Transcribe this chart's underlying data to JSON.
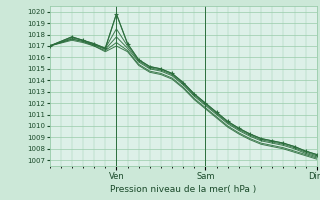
{
  "title": "Pression niveau de la mer( hPa )",
  "background_color": "#cce8d8",
  "plot_bg_color": "#ddf0e8",
  "grid_color": "#99ccaa",
  "line_color": "#2d6e3e",
  "marker_color": "#2d6e3e",
  "ylim": [
    1006.5,
    1020.5
  ],
  "yticks": [
    1007,
    1008,
    1009,
    1010,
    1011,
    1012,
    1013,
    1014,
    1015,
    1016,
    1017,
    1018,
    1019,
    1020
  ],
  "xlabel_color": "#1a4a2a",
  "lines": [
    {
      "x": [
        0,
        12,
        18,
        24,
        30,
        36,
        42,
        48,
        54,
        60,
        66,
        72,
        78,
        84,
        90,
        96,
        102,
        108,
        114,
        120,
        126,
        132,
        138,
        144
      ],
      "y": [
        1017.0,
        1017.8,
        1017.5,
        1017.2,
        1016.8,
        1019.8,
        1017.2,
        1015.8,
        1015.2,
        1015.0,
        1014.6,
        1013.8,
        1012.8,
        1012.0,
        1011.2,
        1010.4,
        1009.8,
        1009.3,
        1008.9,
        1008.7,
        1008.5,
        1008.2,
        1007.8,
        1007.5
      ]
    },
    {
      "x": [
        0,
        12,
        18,
        24,
        30,
        36,
        42,
        48,
        54,
        60,
        66,
        72,
        78,
        84,
        90,
        96,
        102,
        108,
        114,
        120,
        126,
        132,
        138,
        144
      ],
      "y": [
        1017.0,
        1017.7,
        1017.5,
        1017.1,
        1016.8,
        1018.5,
        1017.0,
        1015.7,
        1015.1,
        1014.9,
        1014.5,
        1013.7,
        1012.7,
        1011.9,
        1011.1,
        1010.3,
        1009.7,
        1009.2,
        1008.8,
        1008.6,
        1008.4,
        1008.1,
        1007.7,
        1007.4
      ]
    },
    {
      "x": [
        0,
        12,
        18,
        24,
        30,
        36,
        42,
        48,
        54,
        60,
        66,
        72,
        78,
        84,
        90,
        96,
        102,
        108,
        114,
        120,
        126,
        132,
        138,
        144
      ],
      "y": [
        1017.0,
        1017.6,
        1017.4,
        1017.1,
        1016.7,
        1017.8,
        1016.8,
        1015.6,
        1015.0,
        1014.8,
        1014.4,
        1013.6,
        1012.6,
        1011.8,
        1011.0,
        1010.2,
        1009.6,
        1009.1,
        1008.7,
        1008.5,
        1008.3,
        1008.0,
        1007.6,
        1007.3
      ]
    },
    {
      "x": [
        0,
        12,
        18,
        24,
        30,
        36,
        42,
        48,
        54,
        60,
        66,
        72,
        78,
        84,
        90,
        96,
        102,
        108,
        114,
        120,
        126,
        132,
        138,
        144
      ],
      "y": [
        1017.0,
        1017.6,
        1017.4,
        1017.0,
        1016.6,
        1017.3,
        1016.6,
        1015.4,
        1014.8,
        1014.6,
        1014.2,
        1013.4,
        1012.4,
        1011.6,
        1010.8,
        1010.0,
        1009.4,
        1008.9,
        1008.5,
        1008.3,
        1008.1,
        1007.8,
        1007.5,
        1007.2
      ]
    },
    {
      "x": [
        0,
        12,
        18,
        24,
        30,
        36,
        42,
        48,
        54,
        60,
        66,
        72,
        78,
        84,
        90,
        96,
        102,
        108,
        114,
        120,
        126,
        132,
        138,
        144
      ],
      "y": [
        1017.0,
        1017.5,
        1017.3,
        1017.0,
        1016.5,
        1017.0,
        1016.5,
        1015.3,
        1014.7,
        1014.5,
        1014.1,
        1013.3,
        1012.3,
        1011.5,
        1010.7,
        1009.9,
        1009.3,
        1008.8,
        1008.4,
        1008.2,
        1008.0,
        1007.7,
        1007.4,
        1007.1
      ]
    }
  ],
  "marker_line": {
    "x": [
      0,
      12,
      18,
      24,
      30,
      36,
      42,
      48,
      54,
      60,
      66,
      72,
      78,
      84,
      90,
      96,
      102,
      108,
      114,
      120,
      126,
      132,
      138,
      144
    ],
    "y": [
      1017.0,
      1017.8,
      1017.5,
      1017.2,
      1016.8,
      1019.8,
      1017.2,
      1015.8,
      1015.2,
      1015.0,
      1014.6,
      1013.8,
      1012.8,
      1012.0,
      1011.2,
      1010.4,
      1009.8,
      1009.3,
      1008.9,
      1008.7,
      1008.5,
      1008.2,
      1007.8,
      1007.5
    ]
  },
  "xlim": [
    0,
    144
  ],
  "vlines": [
    36,
    84,
    144
  ],
  "xtick_positions": [
    36,
    84,
    144
  ],
  "xtick_labels": [
    "Ven",
    "Sam",
    "Dim"
  ]
}
